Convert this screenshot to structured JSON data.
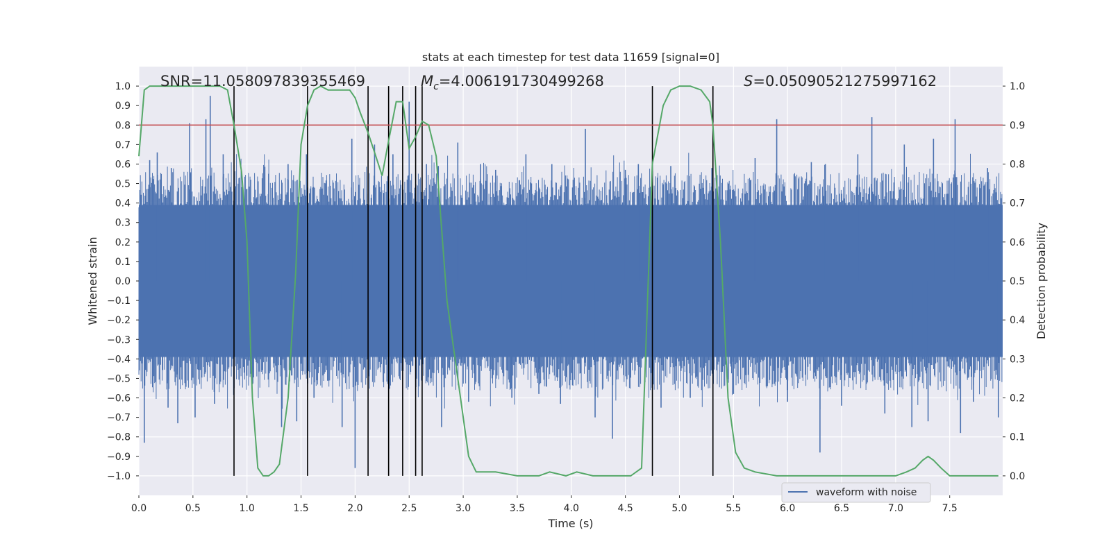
{
  "chart_data": {
    "type": "line",
    "title": "stats at each timestep for test data 11659 [signal=0]",
    "xlabel": "Time (s)",
    "ylabel": "Whitened strain",
    "ylabel_right": "Detection probability",
    "xlim": [
      0.0,
      7.99
    ],
    "ylim": [
      -1.1,
      1.1
    ],
    "ylim_right": [
      -0.05,
      1.05
    ],
    "x_ticks": [
      0.0,
      0.5,
      1.0,
      1.5,
      2.0,
      2.5,
      3.0,
      3.5,
      4.0,
      4.5,
      5.0,
      5.5,
      6.0,
      6.5,
      7.0,
      7.5
    ],
    "x_tick_labels": [
      "0.0",
      "0.5",
      "1.0",
      "1.5",
      "2.0",
      "2.5",
      "3.0",
      "3.5",
      "4.0",
      "4.5",
      "5.0",
      "5.5",
      "6.0",
      "6.5",
      "7.0",
      "7.5"
    ],
    "y_ticks": [
      1.0,
      0.9,
      0.8,
      0.7,
      0.6,
      0.5,
      0.4,
      0.3,
      0.2,
      0.1,
      0.0,
      -0.1,
      -0.2,
      -0.3,
      -0.4,
      -0.5,
      -0.6,
      -0.7,
      -0.8,
      -0.9,
      -1.0
    ],
    "y_tick_labels": [
      "1.0",
      "0.9",
      "0.8",
      "0.7",
      "0.6",
      "0.5",
      "0.4",
      "0.3",
      "0.2",
      "0.1",
      "0.0",
      "−0.1",
      "−0.2",
      "−0.3",
      "−0.4",
      "−0.5",
      "−0.6",
      "−0.7",
      "−0.8",
      "−0.9",
      "−1.0"
    ],
    "y_ticks_right": [
      1.0,
      0.9,
      0.8,
      0.7,
      0.6,
      0.5,
      0.4,
      0.3,
      0.2,
      0.1,
      0.0
    ],
    "y_tick_labels_right": [
      "1.0",
      "0.9",
      "0.8",
      "0.7",
      "0.6",
      "0.5",
      "0.4",
      "0.3",
      "0.2",
      "0.1",
      "0.0"
    ],
    "annotations": {
      "snr": "SNR=11.058097839355469",
      "mc_symbol": "M",
      "mc_sub": "c",
      "mc_value": "=4.006191730499268",
      "s_symbol": "S",
      "s_value": "=0.05090521275997162"
    },
    "threshold": {
      "value": 0.9,
      "axis": "right",
      "color": "#c44e52"
    },
    "vertical_lines": [
      0.88,
      1.56,
      2.12,
      2.31,
      2.44,
      2.56,
      2.62,
      4.75,
      5.31
    ],
    "vertical_line_range": [
      -1.0,
      1.0
    ],
    "waveform": {
      "name": "waveform with noise",
      "color": "#4c72b0",
      "band": 0.39,
      "spikes": [
        [
          0.05,
          -0.83
        ],
        [
          0.1,
          0.62
        ],
        [
          0.17,
          0.66
        ],
        [
          0.27,
          -0.65
        ],
        [
          0.3,
          0.58
        ],
        [
          0.36,
          -0.73
        ],
        [
          0.47,
          0.81
        ],
        [
          0.52,
          -0.7
        ],
        [
          0.62,
          0.83
        ],
        [
          0.66,
          0.95
        ],
        [
          0.7,
          -0.63
        ],
        [
          0.78,
          0.65
        ],
        [
          0.93,
          0.53
        ],
        [
          1.05,
          -0.53
        ],
        [
          1.2,
          0.55
        ],
        [
          1.32,
          -0.75
        ],
        [
          1.38,
          0.6
        ],
        [
          1.46,
          -0.72
        ],
        [
          1.55,
          0.65
        ],
        [
          1.62,
          -0.6
        ],
        [
          1.88,
          -0.75
        ],
        [
          1.97,
          0.73
        ],
        [
          2.0,
          -0.96
        ],
        [
          2.18,
          0.7
        ],
        [
          2.35,
          0.65
        ],
        [
          2.5,
          0.92
        ],
        [
          2.66,
          0.6
        ],
        [
          2.77,
          0.59
        ],
        [
          2.8,
          -0.75
        ],
        [
          2.95,
          0.71
        ],
        [
          3.05,
          -0.62
        ],
        [
          3.16,
          0.6
        ],
        [
          3.3,
          0.57
        ],
        [
          3.45,
          -0.6
        ],
        [
          3.58,
          0.65
        ],
        [
          3.7,
          -0.58
        ],
        [
          3.82,
          0.6
        ],
        [
          3.9,
          -0.63
        ],
        [
          4.13,
          0.78
        ],
        [
          4.22,
          -0.7
        ],
        [
          4.38,
          -0.81
        ],
        [
          4.5,
          0.57
        ],
        [
          4.62,
          0.6
        ],
        [
          4.83,
          -0.65
        ],
        [
          4.92,
          0.59
        ],
        [
          5.1,
          -0.6
        ],
        [
          5.3,
          0.58
        ],
        [
          5.5,
          -0.58
        ],
        [
          5.7,
          0.63
        ],
        [
          5.9,
          0.83
        ],
        [
          6.0,
          -0.62
        ],
        [
          6.22,
          0.61
        ],
        [
          6.3,
          -0.88
        ],
        [
          6.35,
          0.6
        ],
        [
          6.5,
          -0.64
        ],
        [
          6.65,
          0.65
        ],
        [
          6.78,
          0.84
        ],
        [
          6.9,
          -0.68
        ],
        [
          7.08,
          0.7
        ],
        [
          7.15,
          -0.75
        ],
        [
          7.3,
          -0.72
        ],
        [
          7.35,
          0.73
        ],
        [
          7.55,
          0.83
        ],
        [
          7.6,
          -0.78
        ],
        [
          7.72,
          -0.62
        ],
        [
          7.85,
          0.58
        ],
        [
          7.95,
          -0.7
        ]
      ]
    },
    "detection_probability": {
      "name": "detection probability",
      "color": "#55a868",
      "x": [
        0.0,
        0.05,
        0.1,
        0.2,
        0.35,
        0.5,
        0.65,
        0.75,
        0.82,
        0.88,
        0.95,
        1.0,
        1.05,
        1.1,
        1.15,
        1.2,
        1.25,
        1.3,
        1.38,
        1.45,
        1.5,
        1.56,
        1.62,
        1.68,
        1.75,
        1.85,
        1.95,
        2.0,
        2.05,
        2.12,
        2.18,
        2.25,
        2.31,
        2.38,
        2.44,
        2.5,
        2.56,
        2.62,
        2.68,
        2.75,
        2.85,
        2.95,
        3.05,
        3.12,
        3.2,
        3.3,
        3.5,
        3.7,
        3.8,
        3.95,
        4.05,
        4.2,
        4.4,
        4.55,
        4.65,
        4.75,
        4.85,
        4.92,
        5.0,
        5.1,
        5.2,
        5.28,
        5.31,
        5.38,
        5.45,
        5.52,
        5.6,
        5.7,
        5.9,
        6.1,
        6.4,
        6.7,
        7.0,
        7.1,
        7.18,
        7.25,
        7.3,
        7.35,
        7.42,
        7.5,
        7.7,
        7.8,
        7.95
      ],
      "y": [
        0.82,
        0.99,
        1.0,
        1.0,
        1.0,
        1.0,
        1.0,
        1.0,
        0.99,
        0.9,
        0.78,
        0.6,
        0.2,
        0.02,
        0.0,
        0.0,
        0.01,
        0.03,
        0.2,
        0.52,
        0.85,
        0.95,
        0.99,
        1.0,
        0.99,
        0.99,
        0.99,
        0.97,
        0.93,
        0.88,
        0.83,
        0.77,
        0.86,
        0.96,
        0.96,
        0.84,
        0.87,
        0.91,
        0.9,
        0.82,
        0.45,
        0.25,
        0.05,
        0.01,
        0.01,
        0.01,
        0.0,
        0.0,
        0.01,
        0.0,
        0.01,
        0.0,
        0.0,
        0.0,
        0.02,
        0.8,
        0.95,
        0.99,
        1.0,
        1.0,
        0.99,
        0.96,
        0.9,
        0.6,
        0.2,
        0.06,
        0.02,
        0.01,
        0.0,
        0.0,
        0.0,
        0.0,
        0.0,
        0.01,
        0.02,
        0.04,
        0.05,
        0.04,
        0.02,
        0.0,
        0.0,
        0.0,
        0.0
      ]
    },
    "legend": {
      "label": "waveform with noise",
      "placement": "lower-right"
    },
    "grid": true,
    "background": "#eaeaf2"
  }
}
